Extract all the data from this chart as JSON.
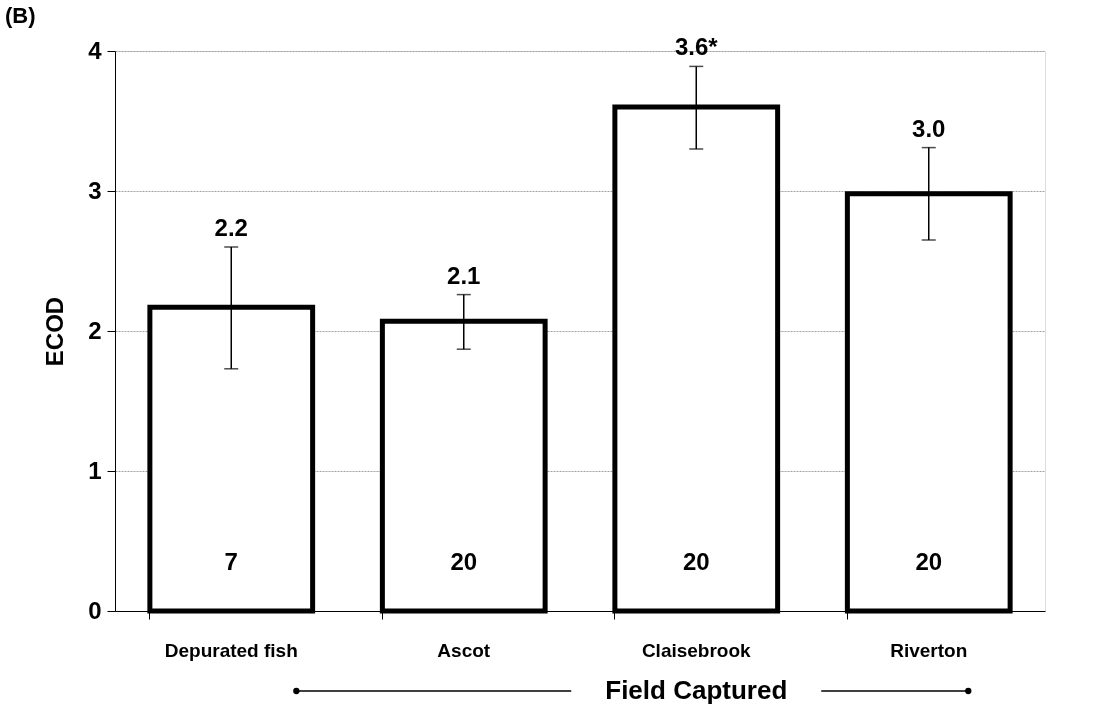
{
  "chart_data": {
    "type": "bar",
    "title": "(B)",
    "xlabel": "Field Captured",
    "ylabel": "ECOD",
    "categories": [
      "Depurated fish",
      "Ascot",
      "Claisebrook",
      "Riverton"
    ],
    "values": [
      2.17,
      2.07,
      3.6,
      2.98
    ],
    "errors": [
      [
        1.73,
        2.6
      ],
      [
        1.87,
        2.26
      ],
      [
        3.3,
        3.89
      ],
      [
        2.65,
        3.31
      ]
    ],
    "value_labels": [
      "2.2",
      "2.1",
      "3.6*",
      "3.0"
    ],
    "color": "#ffffff",
    "ylim": [
      0,
      4
    ],
    "yticks": [
      0,
      1,
      2,
      3,
      4
    ],
    "grid": "y",
    "annotations": [
      "7",
      "20",
      "20",
      "20"
    ]
  }
}
